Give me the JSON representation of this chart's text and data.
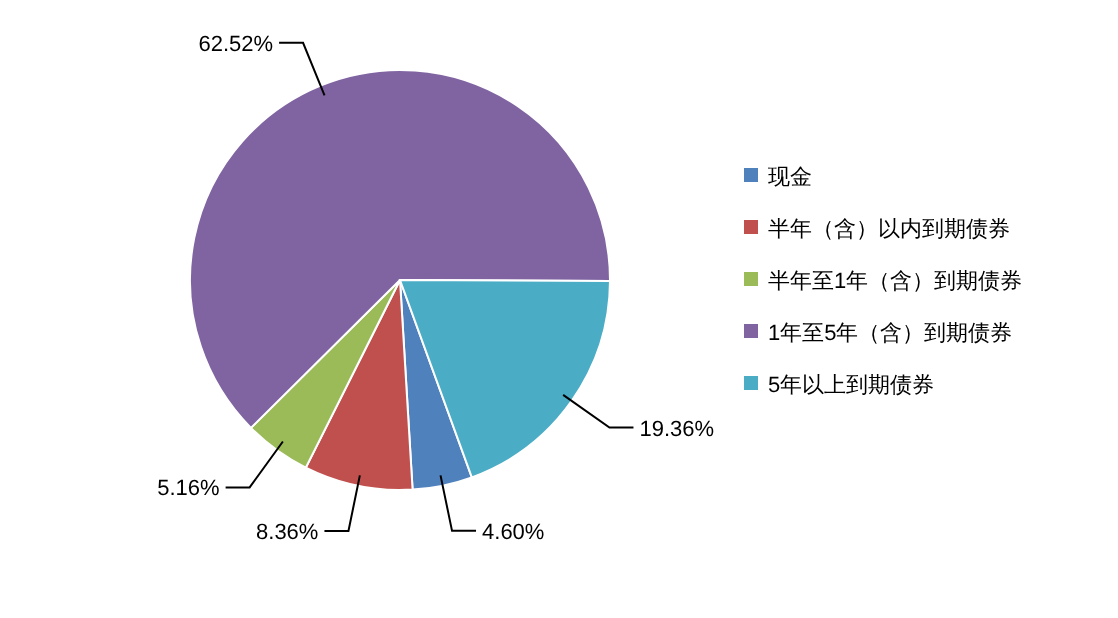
{
  "chart_data": {
    "type": "pie",
    "categories": [
      "现金",
      "半年（含）以内到期债券",
      "半年至1年（含）到期债券",
      "1年至5年（含）到期债券",
      "5年以上到期债券"
    ],
    "values": [
      4.6,
      8.36,
      5.16,
      62.52,
      19.36
    ],
    "value_labels": [
      "4.60%",
      "8.36%",
      "5.16%",
      "62.52%",
      "19.36%"
    ],
    "colors": [
      "#4f81bd",
      "#c0504d",
      "#9bbb59",
      "#8064a2",
      "#4bacc6"
    ],
    "legend": "right"
  }
}
